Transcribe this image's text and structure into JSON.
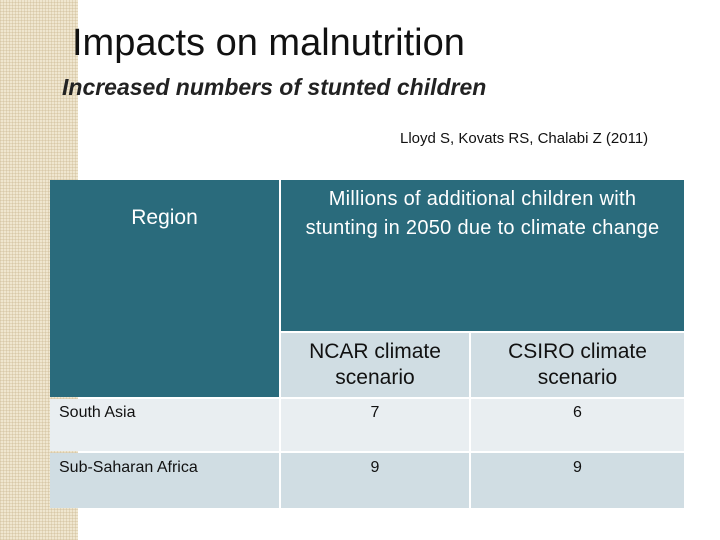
{
  "slide": {
    "title": "Impacts on malnutrition",
    "subtitle": "Increased numbers of stunted children",
    "citation": "Lloyd S, Kovats RS, Chalabi Z (2011)"
  },
  "table": {
    "region_header": "Region",
    "main_header": "Millions of additional children with stunting in 2050 due to climate change",
    "scenarios": [
      "NCAR climate scenario",
      "CSIRO climate scenario"
    ],
    "rows": [
      {
        "region": "South Asia",
        "values": [
          "7",
          "6"
        ]
      },
      {
        "region": "Sub-Saharan Africa",
        "values": [
          "9",
          "9"
        ]
      }
    ]
  },
  "colors": {
    "header_teal": "#2a6b7c",
    "row_dark": "#d0dde3",
    "row_light": "#e9eef1",
    "strip_beige": "#efe6cf"
  }
}
